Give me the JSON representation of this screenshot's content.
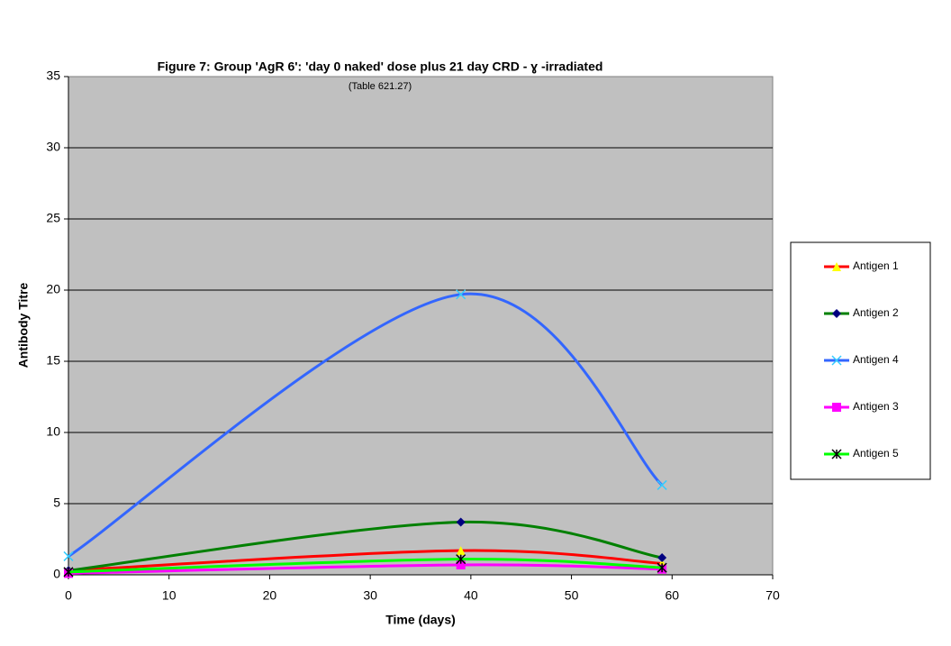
{
  "chart_data": {
    "type": "line",
    "title": "Figure 7: Group 'AgR 6': 'day 0 naked' dose plus 21 day CRD - ɣ -irradiated",
    "subtitle": "(Table 621.27)",
    "x_label": "Time (days)",
    "y_label": "Antibody Titre",
    "x": [
      0,
      39,
      59
    ],
    "series": [
      {
        "name": "Antigen 1",
        "color": "#ff0000",
        "marker": "triangle",
        "marker_color": "#ffff00",
        "values": [
          0.3,
          1.7,
          0.8
        ]
      },
      {
        "name": "Antigen 2",
        "color": "#008000",
        "marker": "diamond",
        "marker_color": "#000080",
        "values": [
          0.3,
          3.7,
          1.2
        ]
      },
      {
        "name": "Antigen 4",
        "color": "#3366ff",
        "marker": "star",
        "marker_color": "#33ccff",
        "values": [
          1.3,
          19.7,
          6.3
        ]
      },
      {
        "name": "Antigen 3",
        "color": "#ff00ff",
        "marker": "square",
        "marker_color": "#ff00ff",
        "values": [
          0.1,
          0.7,
          0.4
        ]
      },
      {
        "name": "Antigen 5",
        "color": "#00ff00",
        "marker": "asterisk",
        "marker_color": "#000000",
        "values": [
          0.2,
          1.1,
          0.5
        ]
      }
    ],
    "xlim": [
      0,
      70
    ],
    "xticks": [
      0,
      10,
      20,
      30,
      40,
      50,
      60,
      70
    ],
    "ylim": [
      0,
      35
    ],
    "yticks": [
      0,
      5,
      10,
      15,
      20,
      25,
      30,
      35
    ],
    "grid": true,
    "smooth": true,
    "legend": "right"
  }
}
